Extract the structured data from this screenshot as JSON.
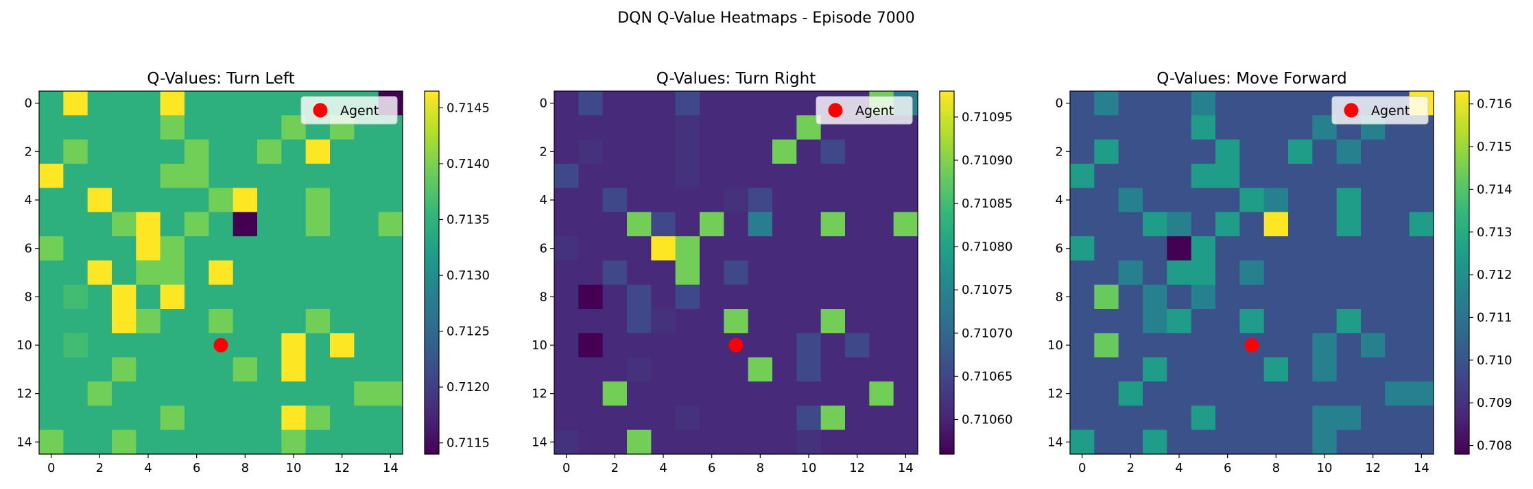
{
  "figure": {
    "title": "DQN Q-Value Heatmaps - Episode 7000"
  },
  "colors": {
    "colormap": "viridis",
    "agent_marker": "#ff0000",
    "legend_frame": "#cccccc"
  },
  "chart_data": [
    {
      "type": "heatmap",
      "title": "Q-Values: Turn Left",
      "xlabel": "",
      "ylabel": "",
      "grid_size": 15,
      "x_ticks": [
        0,
        2,
        4,
        6,
        8,
        10,
        12,
        14
      ],
      "y_ticks": [
        0,
        2,
        4,
        6,
        8,
        10,
        12,
        14
      ],
      "legend": {
        "label": "Agent",
        "placement": "upper right",
        "marker": "red circle"
      },
      "agent": {
        "x": 7,
        "y": 10
      },
      "colorbar": {
        "vmin": 0.7114,
        "vmax": 0.71465,
        "ticks": [
          0.7115,
          0.712,
          0.7125,
          0.713,
          0.7135,
          0.714,
          0.7145
        ],
        "tick_labels": [
          "0.7115",
          "0.7120",
          "0.7125",
          "0.7130",
          "0.7135",
          "0.7140",
          "0.7145"
        ]
      },
      "base_value": 0.71345,
      "cells": [
        {
          "x": 1,
          "y": 0,
          "v": 0.71465
        },
        {
          "x": 5,
          "y": 0,
          "v": 0.71465
        },
        {
          "x": 14,
          "y": 0,
          "v": 0.7114
        },
        {
          "x": 5,
          "y": 1,
          "v": 0.71395
        },
        {
          "x": 10,
          "y": 1,
          "v": 0.71395
        },
        {
          "x": 12,
          "y": 1,
          "v": 0.71395
        },
        {
          "x": 1,
          "y": 2,
          "v": 0.71395
        },
        {
          "x": 6,
          "y": 2,
          "v": 0.71395
        },
        {
          "x": 9,
          "y": 2,
          "v": 0.71395
        },
        {
          "x": 11,
          "y": 2,
          "v": 0.71465
        },
        {
          "x": 0,
          "y": 3,
          "v": 0.71465
        },
        {
          "x": 5,
          "y": 3,
          "v": 0.71395
        },
        {
          "x": 6,
          "y": 3,
          "v": 0.71395
        },
        {
          "x": 2,
          "y": 4,
          "v": 0.71465
        },
        {
          "x": 7,
          "y": 4,
          "v": 0.71395
        },
        {
          "x": 8,
          "y": 4,
          "v": 0.71465
        },
        {
          "x": 11,
          "y": 4,
          "v": 0.71395
        },
        {
          "x": 3,
          "y": 5,
          "v": 0.71395
        },
        {
          "x": 4,
          "y": 5,
          "v": 0.71465
        },
        {
          "x": 6,
          "y": 5,
          "v": 0.71395
        },
        {
          "x": 8,
          "y": 5,
          "v": 0.7114
        },
        {
          "x": 11,
          "y": 5,
          "v": 0.71395
        },
        {
          "x": 14,
          "y": 5,
          "v": 0.71395
        },
        {
          "x": 0,
          "y": 6,
          "v": 0.71395
        },
        {
          "x": 4,
          "y": 6,
          "v": 0.71465
        },
        {
          "x": 5,
          "y": 6,
          "v": 0.71395
        },
        {
          "x": 2,
          "y": 7,
          "v": 0.71465
        },
        {
          "x": 4,
          "y": 7,
          "v": 0.71395
        },
        {
          "x": 5,
          "y": 7,
          "v": 0.71395
        },
        {
          "x": 7,
          "y": 7,
          "v": 0.71465
        },
        {
          "x": 1,
          "y": 8,
          "v": 0.71365
        },
        {
          "x": 3,
          "y": 8,
          "v": 0.71465
        },
        {
          "x": 5,
          "y": 8,
          "v": 0.71465
        },
        {
          "x": 3,
          "y": 9,
          "v": 0.71465
        },
        {
          "x": 4,
          "y": 9,
          "v": 0.71395
        },
        {
          "x": 7,
          "y": 9,
          "v": 0.71395
        },
        {
          "x": 11,
          "y": 9,
          "v": 0.71395
        },
        {
          "x": 1,
          "y": 10,
          "v": 0.71365
        },
        {
          "x": 10,
          "y": 10,
          "v": 0.71465
        },
        {
          "x": 12,
          "y": 10,
          "v": 0.71465
        },
        {
          "x": 3,
          "y": 11,
          "v": 0.71395
        },
        {
          "x": 8,
          "y": 11,
          "v": 0.71395
        },
        {
          "x": 10,
          "y": 11,
          "v": 0.71465
        },
        {
          "x": 2,
          "y": 12,
          "v": 0.71395
        },
        {
          "x": 13,
          "y": 12,
          "v": 0.71395
        },
        {
          "x": 14,
          "y": 12,
          "v": 0.71395
        },
        {
          "x": 5,
          "y": 13,
          "v": 0.71395
        },
        {
          "x": 10,
          "y": 13,
          "v": 0.71465
        },
        {
          "x": 11,
          "y": 13,
          "v": 0.71395
        },
        {
          "x": 0,
          "y": 14,
          "v": 0.71395
        },
        {
          "x": 3,
          "y": 14,
          "v": 0.71395
        },
        {
          "x": 10,
          "y": 14,
          "v": 0.71395
        }
      ]
    },
    {
      "type": "heatmap",
      "title": "Q-Values: Turn Right",
      "xlabel": "",
      "ylabel": "",
      "grid_size": 15,
      "x_ticks": [
        0,
        2,
        4,
        6,
        8,
        10,
        12,
        14
      ],
      "y_ticks": [
        0,
        2,
        4,
        6,
        8,
        10,
        12,
        14
      ],
      "legend": {
        "label": "Agent",
        "placement": "upper right",
        "marker": "red circle"
      },
      "agent": {
        "x": 7,
        "y": 10
      },
      "colorbar": {
        "vmin": 0.71056,
        "vmax": 0.71098,
        "ticks": [
          0.7106,
          0.71065,
          0.7107,
          0.71075,
          0.7108,
          0.71085,
          0.7109,
          0.71095
        ],
        "tick_labels": [
          "0.71060",
          "0.71065",
          "0.71070",
          "0.71075",
          "0.71080",
          "0.71085",
          "0.71090",
          "0.71095"
        ]
      },
      "base_value": 0.71061,
      "cells": [
        {
          "x": 1,
          "y": 0,
          "v": 0.71065
        },
        {
          "x": 5,
          "y": 0,
          "v": 0.71065
        },
        {
          "x": 13,
          "y": 0,
          "v": 0.71089
        },
        {
          "x": 14,
          "y": 0,
          "v": 0.71074
        },
        {
          "x": 5,
          "y": 1,
          "v": 0.71062
        },
        {
          "x": 10,
          "y": 1,
          "v": 0.71089
        },
        {
          "x": 1,
          "y": 2,
          "v": 0.71062
        },
        {
          "x": 5,
          "y": 2,
          "v": 0.71062
        },
        {
          "x": 9,
          "y": 2,
          "v": 0.71089
        },
        {
          "x": 11,
          "y": 2,
          "v": 0.71065
        },
        {
          "x": 0,
          "y": 3,
          "v": 0.71065
        },
        {
          "x": 5,
          "y": 3,
          "v": 0.71062
        },
        {
          "x": 2,
          "y": 4,
          "v": 0.71065
        },
        {
          "x": 7,
          "y": 4,
          "v": 0.71062
        },
        {
          "x": 8,
          "y": 4,
          "v": 0.71065
        },
        {
          "x": 3,
          "y": 5,
          "v": 0.71089
        },
        {
          "x": 4,
          "y": 5,
          "v": 0.71065
        },
        {
          "x": 6,
          "y": 5,
          "v": 0.71089
        },
        {
          "x": 8,
          "y": 5,
          "v": 0.71074
        },
        {
          "x": 11,
          "y": 5,
          "v": 0.71089
        },
        {
          "x": 14,
          "y": 5,
          "v": 0.71089
        },
        {
          "x": 0,
          "y": 6,
          "v": 0.71062
        },
        {
          "x": 4,
          "y": 6,
          "v": 0.71098
        },
        {
          "x": 5,
          "y": 6,
          "v": 0.71089
        },
        {
          "x": 2,
          "y": 7,
          "v": 0.71065
        },
        {
          "x": 5,
          "y": 7,
          "v": 0.71089
        },
        {
          "x": 7,
          "y": 7,
          "v": 0.71065
        },
        {
          "x": 1,
          "y": 8,
          "v": 0.71056
        },
        {
          "x": 3,
          "y": 8,
          "v": 0.71065
        },
        {
          "x": 5,
          "y": 8,
          "v": 0.71065
        },
        {
          "x": 3,
          "y": 9,
          "v": 0.71065
        },
        {
          "x": 4,
          "y": 9,
          "v": 0.71062
        },
        {
          "x": 7,
          "y": 9,
          "v": 0.71089
        },
        {
          "x": 11,
          "y": 9,
          "v": 0.71089
        },
        {
          "x": 1,
          "y": 10,
          "v": 0.71056
        },
        {
          "x": 10,
          "y": 10,
          "v": 0.71065
        },
        {
          "x": 12,
          "y": 10,
          "v": 0.71065
        },
        {
          "x": 3,
          "y": 11,
          "v": 0.71062
        },
        {
          "x": 8,
          "y": 11,
          "v": 0.71089
        },
        {
          "x": 10,
          "y": 11,
          "v": 0.71065
        },
        {
          "x": 2,
          "y": 12,
          "v": 0.71089
        },
        {
          "x": 13,
          "y": 12,
          "v": 0.71089
        },
        {
          "x": 5,
          "y": 13,
          "v": 0.71062
        },
        {
          "x": 10,
          "y": 13,
          "v": 0.71065
        },
        {
          "x": 11,
          "y": 13,
          "v": 0.71089
        },
        {
          "x": 0,
          "y": 14,
          "v": 0.71062
        },
        {
          "x": 3,
          "y": 14,
          "v": 0.71089
        },
        {
          "x": 10,
          "y": 14,
          "v": 0.71062
        }
      ]
    },
    {
      "type": "heatmap",
      "title": "Q-Values: Move Forward",
      "xlabel": "",
      "ylabel": "",
      "grid_size": 15,
      "x_ticks": [
        0,
        2,
        4,
        6,
        8,
        10,
        12,
        14
      ],
      "y_ticks": [
        0,
        2,
        4,
        6,
        8,
        10,
        12,
        14
      ],
      "legend": {
        "label": "Agent",
        "placement": "upper right",
        "marker": "red circle"
      },
      "agent": {
        "x": 7,
        "y": 10
      },
      "colorbar": {
        "vmin": 0.7078,
        "vmax": 0.7163,
        "ticks": [
          0.708,
          0.709,
          0.71,
          0.711,
          0.712,
          0.713,
          0.714,
          0.715,
          0.716
        ],
        "tick_labels": [
          "0.708",
          "0.709",
          "0.710",
          "0.711",
          "0.712",
          "0.713",
          "0.714",
          "0.715",
          "0.716"
        ]
      },
      "base_value": 0.7099,
      "cells": [
        {
          "x": 1,
          "y": 0,
          "v": 0.7115
        },
        {
          "x": 5,
          "y": 0,
          "v": 0.7115
        },
        {
          "x": 13,
          "y": 0,
          "v": 0.7099
        },
        {
          "x": 14,
          "y": 0,
          "v": 0.7163
        },
        {
          "x": 5,
          "y": 1,
          "v": 0.7125
        },
        {
          "x": 10,
          "y": 1,
          "v": 0.7115
        },
        {
          "x": 12,
          "y": 1,
          "v": 0.7115
        },
        {
          "x": 1,
          "y": 2,
          "v": 0.7125
        },
        {
          "x": 6,
          "y": 2,
          "v": 0.7125
        },
        {
          "x": 9,
          "y": 2,
          "v": 0.7125
        },
        {
          "x": 11,
          "y": 2,
          "v": 0.7115
        },
        {
          "x": 0,
          "y": 3,
          "v": 0.7125
        },
        {
          "x": 5,
          "y": 3,
          "v": 0.7125
        },
        {
          "x": 6,
          "y": 3,
          "v": 0.7125
        },
        {
          "x": 2,
          "y": 4,
          "v": 0.7115
        },
        {
          "x": 7,
          "y": 4,
          "v": 0.7125
        },
        {
          "x": 8,
          "y": 4,
          "v": 0.7115
        },
        {
          "x": 11,
          "y": 4,
          "v": 0.7125
        },
        {
          "x": 3,
          "y": 5,
          "v": 0.7125
        },
        {
          "x": 4,
          "y": 5,
          "v": 0.7115
        },
        {
          "x": 6,
          "y": 5,
          "v": 0.7125
        },
        {
          "x": 8,
          "y": 5,
          "v": 0.7163
        },
        {
          "x": 11,
          "y": 5,
          "v": 0.7125
        },
        {
          "x": 14,
          "y": 5,
          "v": 0.7125
        },
        {
          "x": 0,
          "y": 6,
          "v": 0.7125
        },
        {
          "x": 4,
          "y": 6,
          "v": 0.7078
        },
        {
          "x": 5,
          "y": 6,
          "v": 0.7125
        },
        {
          "x": 2,
          "y": 7,
          "v": 0.7115
        },
        {
          "x": 4,
          "y": 7,
          "v": 0.7125
        },
        {
          "x": 5,
          "y": 7,
          "v": 0.7125
        },
        {
          "x": 7,
          "y": 7,
          "v": 0.7115
        },
        {
          "x": 1,
          "y": 8,
          "v": 0.7143
        },
        {
          "x": 3,
          "y": 8,
          "v": 0.7115
        },
        {
          "x": 5,
          "y": 8,
          "v": 0.7115
        },
        {
          "x": 3,
          "y": 9,
          "v": 0.7115
        },
        {
          "x": 4,
          "y": 9,
          "v": 0.7125
        },
        {
          "x": 7,
          "y": 9,
          "v": 0.7125
        },
        {
          "x": 11,
          "y": 9,
          "v": 0.7125
        },
        {
          "x": 1,
          "y": 10,
          "v": 0.7143
        },
        {
          "x": 10,
          "y": 10,
          "v": 0.7115
        },
        {
          "x": 12,
          "y": 10,
          "v": 0.7115
        },
        {
          "x": 3,
          "y": 11,
          "v": 0.7125
        },
        {
          "x": 8,
          "y": 11,
          "v": 0.7125
        },
        {
          "x": 10,
          "y": 11,
          "v": 0.7115
        },
        {
          "x": 2,
          "y": 12,
          "v": 0.7125
        },
        {
          "x": 13,
          "y": 12,
          "v": 0.7115
        },
        {
          "x": 14,
          "y": 12,
          "v": 0.7115
        },
        {
          "x": 5,
          "y": 13,
          "v": 0.7125
        },
        {
          "x": 10,
          "y": 13,
          "v": 0.7115
        },
        {
          "x": 11,
          "y": 13,
          "v": 0.7115
        },
        {
          "x": 0,
          "y": 14,
          "v": 0.7125
        },
        {
          "x": 3,
          "y": 14,
          "v": 0.7125
        },
        {
          "x": 10,
          "y": 14,
          "v": 0.7115
        }
      ]
    }
  ]
}
